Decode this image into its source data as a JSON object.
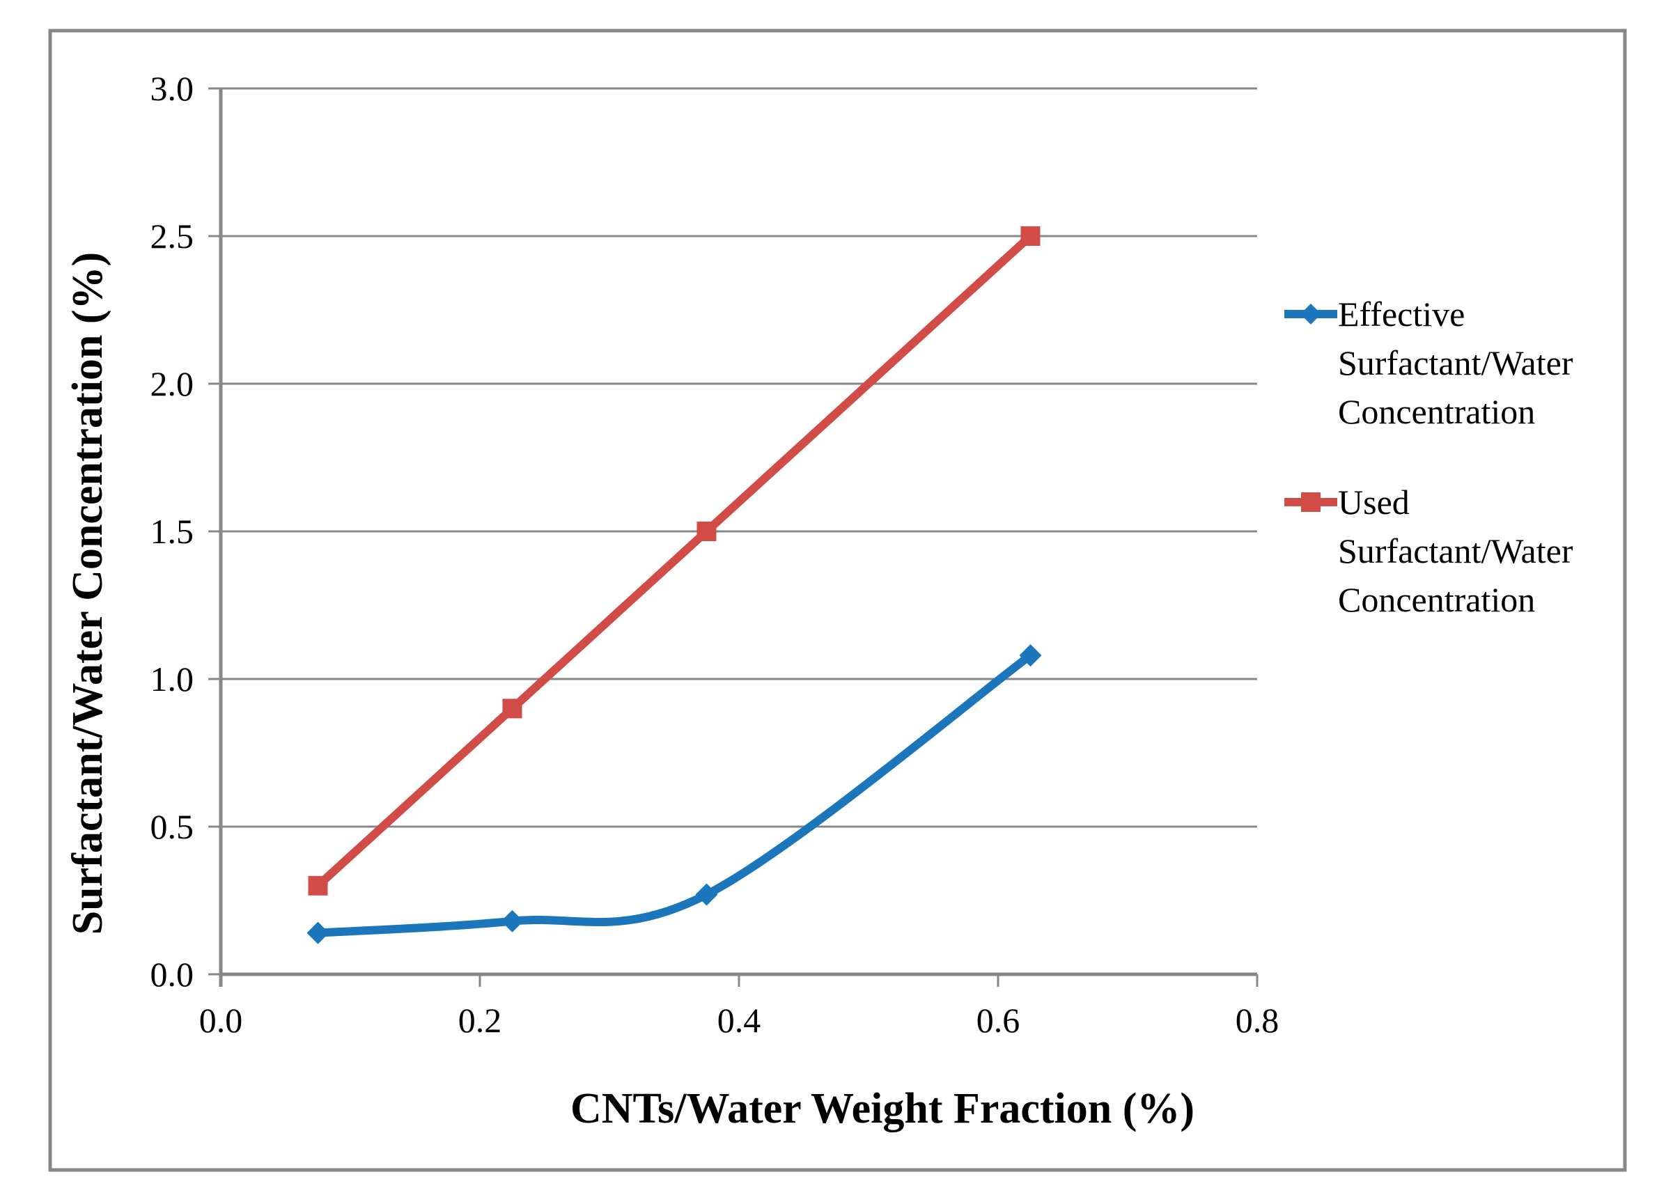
{
  "figure": {
    "background_color": "#ffffff",
    "border_color": "#878787",
    "gridline_color": "#878787",
    "axis_color": "#878787",
    "text_color": "#000000"
  },
  "chart_data": {
    "type": "line",
    "title": "",
    "xlabel": "CNTs/Water Weight Fraction (%)",
    "ylabel": "Surfactant/Water Concentration (%)",
    "xlim": [
      0.0,
      0.8
    ],
    "ylim": [
      0.0,
      3.0
    ],
    "grid": "horizontal",
    "legend_position": "right",
    "xticks": [
      {
        "value": 0.0,
        "label": "0.0"
      },
      {
        "value": 0.2,
        "label": "0.2"
      },
      {
        "value": 0.4,
        "label": "0.4"
      },
      {
        "value": 0.6,
        "label": "0.6"
      },
      {
        "value": 0.8,
        "label": "0.8"
      }
    ],
    "yticks": [
      {
        "value": 0.0,
        "label": "0.0"
      },
      {
        "value": 0.5,
        "label": "0.5"
      },
      {
        "value": 1.0,
        "label": "1.0"
      },
      {
        "value": 1.5,
        "label": "1.5"
      },
      {
        "value": 2.0,
        "label": "2.0"
      },
      {
        "value": 2.5,
        "label": "2.5"
      },
      {
        "value": 3.0,
        "label": "3.0"
      }
    ],
    "series": [
      {
        "name": "Effective Surfactant/Water Concentration",
        "legend_lines": [
          "Effective",
          "Surfactant/Water",
          "Concentration"
        ],
        "color": "#1B76BC",
        "marker": "diamond",
        "smooth": true,
        "x": [
          0.075,
          0.225,
          0.375,
          0.625
        ],
        "y": [
          0.14,
          0.18,
          0.27,
          1.08
        ]
      },
      {
        "name": "Used Surfactant/Water Concentration",
        "legend_lines": [
          "Used",
          "Surfactant/Water",
          "Concentration"
        ],
        "color": "#D14B47",
        "marker": "square",
        "smooth": true,
        "x": [
          0.075,
          0.225,
          0.375,
          0.625
        ],
        "y": [
          0.3,
          0.9,
          1.5,
          2.5
        ]
      }
    ]
  }
}
